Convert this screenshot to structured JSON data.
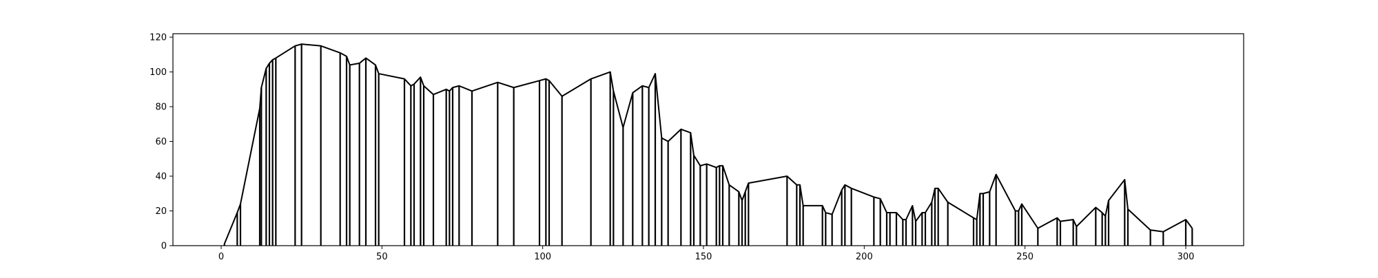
{
  "chart_data": {
    "type": "line",
    "title": "",
    "xlabel": "",
    "ylabel": "",
    "xlim": [
      -15,
      318
    ],
    "ylim": [
      0,
      122
    ],
    "xticks": [
      0,
      50,
      100,
      150,
      200,
      250,
      300
    ],
    "yticks": [
      0,
      20,
      40,
      60,
      80,
      100,
      120
    ],
    "grid": false,
    "legend": "none",
    "stems": true,
    "series": [
      {
        "color": "#000000",
        "x": [
          1,
          5,
          6,
          12,
          12.5,
          14,
          15,
          16,
          17,
          23,
          25,
          31,
          37,
          39,
          40,
          43,
          45,
          48,
          49,
          57,
          59,
          60,
          62,
          63,
          66,
          70,
          71,
          72,
          74,
          78,
          86,
          91,
          99,
          101,
          102,
          106,
          115,
          121,
          122,
          125,
          128,
          131,
          133,
          135,
          137,
          139,
          143,
          146,
          147,
          149,
          151,
          154,
          155,
          156,
          158,
          161,
          162,
          163,
          164,
          176,
          179,
          180,
          181,
          187,
          188,
          190,
          193,
          194,
          196,
          203,
          205,
          207,
          208,
          210,
          212,
          213,
          215,
          216,
          218,
          219,
          221,
          222,
          223,
          226,
          234,
          235,
          236,
          237,
          239,
          241,
          247,
          248,
          249,
          254,
          260,
          261,
          265,
          266,
          272,
          274,
          275,
          276,
          281,
          282,
          289,
          293,
          300,
          302
        ],
        "y": [
          1,
          19,
          24,
          79,
          91,
          102,
          105,
          107,
          108,
          115,
          116,
          115,
          111,
          109,
          104,
          105,
          108,
          104,
          99,
          96,
          92,
          93,
          97,
          92,
          87,
          90,
          89,
          91,
          92,
          89,
          94,
          91,
          95,
          96,
          95,
          86,
          96,
          100,
          89,
          68,
          88,
          92,
          91,
          99,
          62,
          60,
          67,
          65,
          52,
          46,
          47,
          45,
          46,
          46,
          35,
          31,
          26,
          31,
          36,
          40,
          35,
          35,
          23,
          23,
          19,
          18,
          32,
          35,
          33,
          28,
          27,
          19,
          19,
          19,
          15,
          15,
          23,
          14,
          19,
          19,
          25,
          33,
          33,
          25,
          16,
          15,
          30,
          30,
          31,
          41,
          20,
          20,
          24,
          10,
          16,
          14,
          15,
          11,
          22,
          19,
          17,
          26,
          38,
          21,
          9,
          8,
          15,
          10
        ]
      }
    ]
  }
}
